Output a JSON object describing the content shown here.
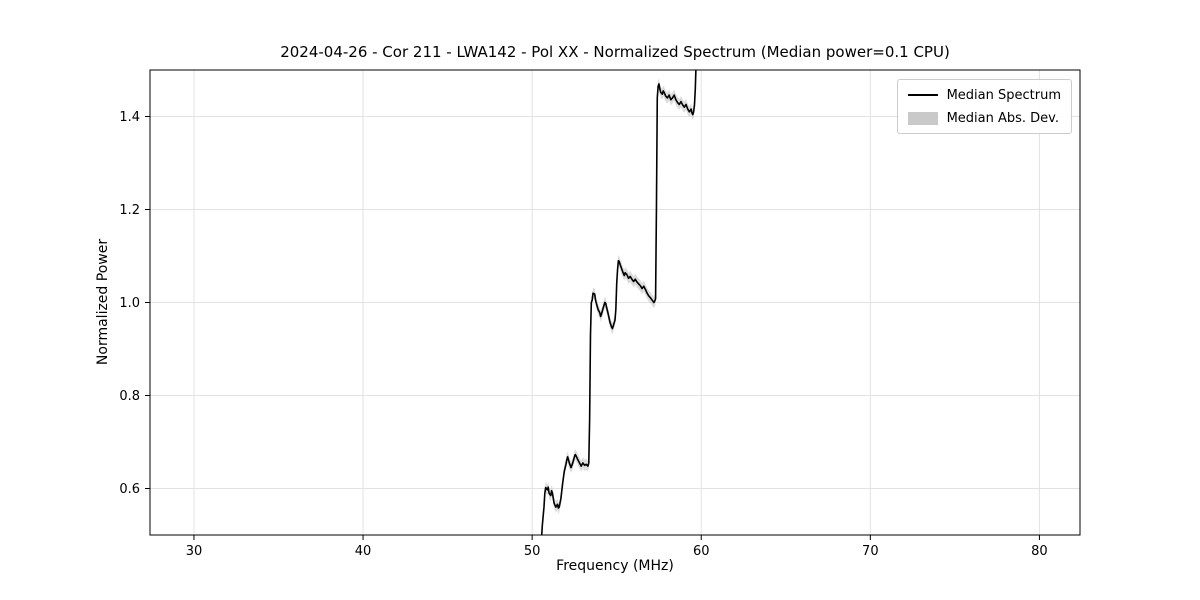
{
  "title": "2024-04-26 - Cor 211 - LWA142 - Pol XX - Normalized Spectrum (Median power=0.1 CPU)",
  "chart_data": {
    "type": "line",
    "title": "2024-04-26 - Cor 211 - LWA142 - Pol XX - Normalized Spectrum (Median power=0.1 CPU)",
    "xlabel": "Frequency (MHz)",
    "ylabel": "Normalized Power",
    "xlim": [
      27.4,
      82.4
    ],
    "ylim": [
      0.5,
      1.5
    ],
    "xticks": [
      30,
      40,
      50,
      60,
      70,
      80
    ],
    "yticks": [
      0.6,
      0.8,
      1.0,
      1.2,
      1.4
    ],
    "grid": true,
    "grid_color": "#e2e2e2",
    "legend": {
      "position": "upper right",
      "entries": [
        {
          "label": "Median Spectrum",
          "type": "line",
          "color": "#000000"
        },
        {
          "label": "Median Abs. Dev.",
          "type": "patch",
          "color": "#c9c9c9"
        }
      ]
    },
    "band": {
      "name": "Median Abs. Dev.",
      "color": "#c0c0c0",
      "opacity": 0.55,
      "width": 0.012
    },
    "series": [
      {
        "name": "Median Spectrum",
        "color": "#000000",
        "x": [
          50.55,
          50.6,
          50.7,
          50.75,
          50.8,
          50.9,
          50.95,
          51.0,
          51.1,
          51.15,
          51.2,
          51.3,
          51.4,
          51.5,
          51.55,
          51.6,
          51.7,
          51.8,
          51.9,
          52.0,
          52.05,
          52.1,
          52.2,
          52.3,
          52.4,
          52.5,
          52.55,
          52.6,
          52.7,
          52.8,
          52.9,
          53.0,
          53.1,
          53.2,
          53.3,
          53.35,
          53.4,
          53.45,
          53.5,
          53.55,
          53.6,
          53.7,
          53.75,
          53.8,
          53.9,
          54.0,
          54.05,
          54.1,
          54.2,
          54.3,
          54.35,
          54.4,
          54.5,
          54.6,
          54.7,
          54.75,
          54.8,
          54.9,
          54.95,
          55.0,
          55.05,
          55.1,
          55.15,
          55.2,
          55.3,
          55.4,
          55.45,
          55.5,
          55.6,
          55.7,
          55.8,
          55.9,
          56.0,
          56.1,
          56.2,
          56.3,
          56.4,
          56.5,
          56.6,
          56.7,
          56.8,
          56.9,
          57.0,
          57.1,
          57.2,
          57.25,
          57.3,
          57.35,
          57.4,
          57.45,
          57.5,
          57.55,
          57.6,
          57.7,
          57.75,
          57.8,
          57.9,
          58.0,
          58.1,
          58.2,
          58.3,
          58.4,
          58.5,
          58.6,
          58.7,
          58.8,
          58.9,
          59.0,
          59.1,
          59.2,
          59.3,
          59.4,
          59.45,
          59.5,
          59.55,
          59.6,
          59.65,
          59.7,
          59.72
        ],
        "y": [
          0.49,
          0.52,
          0.56,
          0.59,
          0.602,
          0.597,
          0.603,
          0.59,
          0.585,
          0.595,
          0.59,
          0.568,
          0.56,
          0.566,
          0.558,
          0.56,
          0.578,
          0.61,
          0.637,
          0.652,
          0.662,
          0.668,
          0.655,
          0.645,
          0.655,
          0.668,
          0.673,
          0.67,
          0.662,
          0.655,
          0.648,
          0.655,
          0.65,
          0.652,
          0.648,
          0.655,
          0.75,
          0.93,
          1.0,
          1.005,
          1.02,
          1.018,
          1.005,
          0.998,
          0.985,
          0.978,
          0.97,
          0.975,
          0.988,
          1.0,
          0.998,
          0.99,
          0.975,
          0.958,
          0.947,
          0.944,
          0.95,
          0.962,
          0.985,
          1.04,
          1.07,
          1.09,
          1.088,
          1.082,
          1.072,
          1.062,
          1.058,
          1.064,
          1.06,
          1.052,
          1.056,
          1.05,
          1.045,
          1.05,
          1.044,
          1.04,
          1.036,
          1.03,
          1.035,
          1.028,
          1.02,
          1.014,
          1.01,
          1.005,
          1.0,
          1.003,
          1.008,
          1.2,
          1.44,
          1.465,
          1.47,
          1.46,
          1.452,
          1.448,
          1.455,
          1.452,
          1.444,
          1.44,
          1.446,
          1.436,
          1.44,
          1.446,
          1.436,
          1.43,
          1.426,
          1.432,
          1.425,
          1.42,
          1.426,
          1.416,
          1.41,
          1.416,
          1.408,
          1.404,
          1.41,
          1.425,
          1.46,
          1.52,
          1.56
        ]
      }
    ]
  }
}
